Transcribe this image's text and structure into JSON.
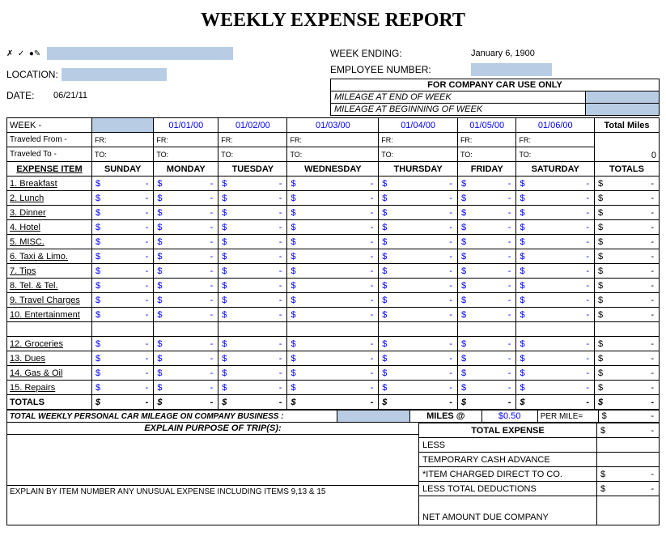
{
  "title": "WEEKLY EXPENSE REPORT",
  "header": {
    "week_ending_label": "WEEK ENDING:",
    "week_ending_value": "January 6, 1900",
    "employee_number_label": "EMPLOYEE NUMBER:",
    "location_label": "LOCATION:",
    "date_label": "DATE:",
    "date_value": "06/21/11"
  },
  "company_car": {
    "title": "FOR COMPANY CAR USE ONLY",
    "end_label": "MILEAGE AT END OF WEEK",
    "begin_label": "MILEAGE AT BEGINNING OF WEEK"
  },
  "week_label": "WEEK -",
  "dates": [
    "",
    "01/01/00",
    "01/02/00",
    "01/03/00",
    "01/04/00",
    "01/05/00",
    "01/06/00"
  ],
  "total_miles_label": "Total Miles",
  "total_miles_value": "0",
  "traveled_from": "Traveled From -",
  "traveled_to": "Traveled To -",
  "fr": "FR:",
  "to": "TO:",
  "expense_item_header": "EXPENSE ITEM",
  "days": [
    "SUNDAY",
    "MONDAY",
    "TUESDAY",
    "WEDNESDAY",
    "THURSDAY",
    "FRIDAY",
    "SATURDAY"
  ],
  "totals_header": "TOTALS",
  "rows": [
    "1. Breakfast",
    "2. Lunch",
    "3. Dinner",
    "4. Hotel",
    "5.  MISC.",
    "6. Taxi & Limo.",
    "7. Tips",
    "8. Tel. & Tel.",
    "9. Travel Charges",
    "10. Entertainment",
    "",
    "12.  Groceries",
    "13. Dues",
    "14. Gas & Oil",
    "15. Repairs"
  ],
  "totals_row_label": "TOTALS",
  "mileage_line": {
    "label": "TOTAL WEEKLY PERSONAL CAR MILEAGE ON COMPANY BUSINESS :",
    "miles_at": "MILES @",
    "rate": "$0.50",
    "per_mile": "PER MILE="
  },
  "explain": {
    "header": "EXPLAIN PURPOSE OF TRIP(S):",
    "note": "EXPLAIN BY ITEM NUMBER ANY UNUSUAL EXPENSE INCLUDING ITEMS 9,13 & 15"
  },
  "summary": {
    "total_expense": "TOTAL EXPENSE",
    "less": "LESS",
    "temp_cash": "TEMPORARY CASH ADVANCE",
    "item_charged": "*ITEM CHARGED DIRECT TO CO.",
    "less_deduct": "LESS TOTAL DEDUCTIONS",
    "net_amount": "NET AMOUNT DUE COMPANY"
  },
  "dollar": "$",
  "dash": "-",
  "colors": {
    "blue_fill": "#b8cce4",
    "blue_text": "#0000ff"
  }
}
